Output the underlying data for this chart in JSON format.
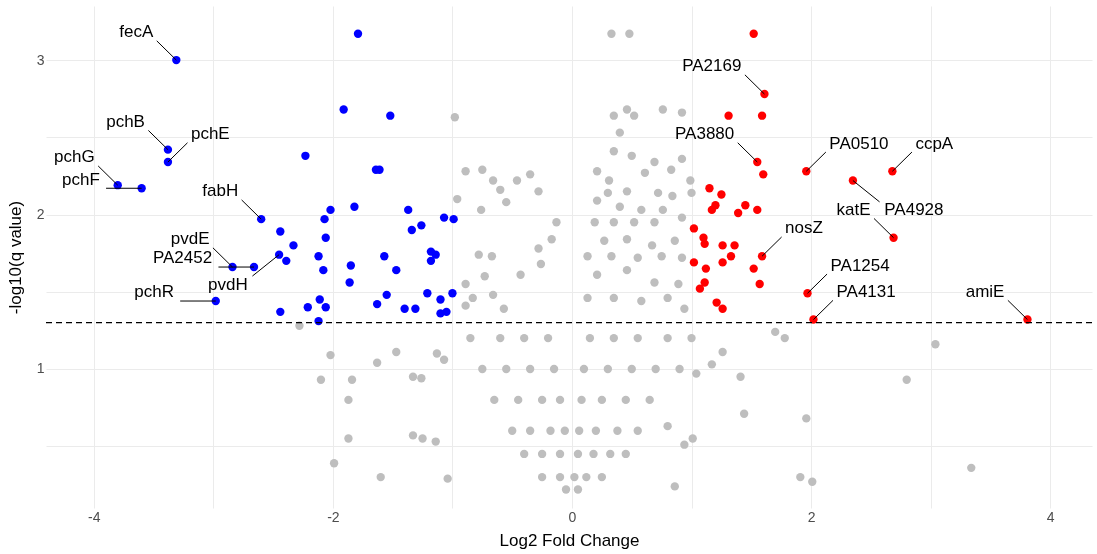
{
  "chart_data": {
    "type": "scatter",
    "xlabel": "Log2 Fold Change",
    "ylabel": "-log10(q value)",
    "xlim": [
      -4.4,
      4.35
    ],
    "ylim": [
      0.1,
      3.35
    ],
    "xticks": [
      -4,
      {
        "value": -3,
        "label": null
      },
      -2,
      {
        "value": -1,
        "label": null
      },
      0,
      {
        "value": 1,
        "label": null
      },
      2,
      {
        "value": 3,
        "label": null
      },
      4
    ],
    "yticks": [
      {
        "value": 0.5,
        "label": null
      },
      1,
      {
        "value": 1.5,
        "label": null
      },
      2,
      {
        "value": 2.5,
        "label": null
      },
      3
    ],
    "grid": true,
    "legend": false,
    "marker": "circle",
    "ref_lines": [
      {
        "axis": "y",
        "value": 1.3,
        "line_style": "dashed",
        "color": "#000000"
      }
    ],
    "series": [
      {
        "color": "#bebebe",
        "x": [
          0.33,
          0.48,
          -0.98,
          0.35,
          0.46,
          0.52,
          0.76,
          0.92,
          0.4,
          -0.89,
          -0.75,
          -0.66,
          -0.46,
          -0.35,
          -0.6,
          -0.55,
          -0.28,
          -0.96,
          -0.76,
          -0.13,
          -0.17,
          -0.28,
          -0.78,
          -0.67,
          -0.73,
          -0.89,
          -0.83,
          -0.89,
          -0.43,
          -0.26,
          -0.66,
          -0.57,
          0.35,
          0.5,
          0.69,
          0.92,
          0.21,
          0.83,
          0.61,
          0.99,
          0.31,
          0.3,
          0.46,
          0.72,
          0.84,
          1.0,
          0.21,
          0.4,
          0.58,
          0.76,
          0.19,
          0.35,
          0.52,
          0.69,
          0.92,
          0.27,
          0.46,
          0.67,
          0.86,
          0.13,
          0.33,
          0.55,
          0.75,
          0.92,
          0.21,
          0.46,
          0.69,
          0.89,
          0.13,
          0.35,
          0.58,
          0.8,
          0.94,
          -0.85,
          -0.6,
          -0.4,
          -0.2,
          0.15,
          0.35,
          0.55,
          0.8,
          1.0,
          -0.75,
          -0.55,
          -0.35,
          -0.15,
          0.1,
          0.3,
          0.5,
          0.7,
          0.9,
          -0.65,
          -0.45,
          -0.25,
          -0.1,
          0.08,
          0.25,
          0.45,
          0.65,
          -0.5,
          -0.35,
          -0.18,
          -0.06,
          0.06,
          0.2,
          0.38,
          0.55,
          -0.4,
          -0.25,
          -0.1,
          0.05,
          0.18,
          0.32,
          0.45,
          -0.25,
          -0.1,
          0.02,
          0.12,
          0.25,
          -0.05,
          0.05,
          -2.28,
          -2.02,
          -2.1,
          -1.84,
          -1.87,
          -1.63,
          -1.47,
          -1.33,
          -1.26,
          -1.13,
          -1.07,
          -1.87,
          -1.99,
          -1.6,
          -1.33,
          -1.25,
          -1.14,
          -1.04,
          1.7,
          1.78,
          1.41,
          1.44,
          1.96,
          1.91,
          2.01,
          2.8,
          3.04,
          3.34,
          1.26,
          1.17,
          1.04,
          0.86,
          1.01,
          0.94,
          0.8
        ],
        "values": [
          3.17,
          3.17,
          2.63,
          2.64,
          2.68,
          2.64,
          2.68,
          2.66,
          2.53,
          2.28,
          2.29,
          2.22,
          2.22,
          2.26,
          2.16,
          2.08,
          2.15,
          2.1,
          2.03,
          1.95,
          1.84,
          1.78,
          1.74,
          1.73,
          1.6,
          1.55,
          1.46,
          1.41,
          1.61,
          1.68,
          1.48,
          1.39,
          2.41,
          2.38,
          2.34,
          2.36,
          2.28,
          2.29,
          2.27,
          2.22,
          2.22,
          2.14,
          2.15,
          2.14,
          2.12,
          2.14,
          2.09,
          2.05,
          2.03,
          2.03,
          1.95,
          1.95,
          1.95,
          1.95,
          1.98,
          1.83,
          1.84,
          1.8,
          1.83,
          1.73,
          1.73,
          1.72,
          1.73,
          1.72,
          1.61,
          1.64,
          1.56,
          1.55,
          1.46,
          1.46,
          1.44,
          1.46,
          1.39,
          1.2,
          1.2,
          1.2,
          1.2,
          1.2,
          1.2,
          1.2,
          1.2,
          1.2,
          1.0,
          1.0,
          1.0,
          1.0,
          1.0,
          1.0,
          1.0,
          1.0,
          1.0,
          0.8,
          0.8,
          0.8,
          0.8,
          0.8,
          0.8,
          0.8,
          0.8,
          0.6,
          0.6,
          0.6,
          0.6,
          0.6,
          0.6,
          0.6,
          0.6,
          0.45,
          0.45,
          0.45,
          0.45,
          0.45,
          0.45,
          0.45,
          0.3,
          0.3,
          0.3,
          0.3,
          0.3,
          0.22,
          0.22,
          1.28,
          1.09,
          0.93,
          0.93,
          0.8,
          1.04,
          1.11,
          0.95,
          0.94,
          1.1,
          1.06,
          0.55,
          0.39,
          0.3,
          0.57,
          0.55,
          0.53,
          0.29,
          1.24,
          1.2,
          0.95,
          0.71,
          0.68,
          0.3,
          0.27,
          0.93,
          1.16,
          0.36,
          1.11,
          1.03,
          0.97,
          0.24,
          0.55,
          0.51,
          0.63
        ]
      },
      {
        "color": "#0000ff",
        "x": [
          -3.31,
          -3.38,
          -3.38,
          -3.8,
          -3.6,
          -2.6,
          -2.84,
          -2.66,
          -2.45,
          -2.98,
          -1.79,
          -1.91,
          -1.52,
          -2.23,
          -1.64,
          -1.61,
          -2.02,
          -1.82,
          -2.07,
          -2.44,
          -2.33,
          -2.06,
          -2.39,
          -2.12,
          -2.08,
          -1.85,
          -1.86,
          -2.44,
          -2.21,
          -2.11,
          -2.06,
          -2.12,
          -1.63,
          -1.55,
          -1.37,
          -1.34,
          -1.26,
          -1.07,
          -0.99,
          -1.57,
          -1.18,
          -1.14,
          -1.18,
          -1.47,
          -1.21,
          -1.1,
          -1.0,
          -1.4,
          -1.31,
          -1.1,
          -1.05
        ],
        "values": [
          3.0,
          2.42,
          2.34,
          2.19,
          2.17,
          1.97,
          1.66,
          1.66,
          1.74,
          1.44,
          3.17,
          2.68,
          2.64,
          2.38,
          2.29,
          2.29,
          2.03,
          2.05,
          1.97,
          1.89,
          1.8,
          1.85,
          1.7,
          1.73,
          1.64,
          1.67,
          1.56,
          1.37,
          1.4,
          1.45,
          1.4,
          1.31,
          1.42,
          1.48,
          2.03,
          1.9,
          1.93,
          1.98,
          1.97,
          1.73,
          1.76,
          1.74,
          1.7,
          1.64,
          1.49,
          1.45,
          1.49,
          1.39,
          1.39,
          1.36,
          1.37
        ]
      },
      {
        "color": "#ff0000",
        "x": [
          1.61,
          1.55,
          1.96,
          2.35,
          2.68,
          2.69,
          1.59,
          1.97,
          2.02,
          3.81,
          1.52,
          1.31,
          1.59,
          1.6,
          1.15,
          1.25,
          1.2,
          1.17,
          1.45,
          1.39,
          1.55,
          1.02,
          1.1,
          1.11,
          1.26,
          1.36,
          1.33,
          1.26,
          1.02,
          1.12,
          1.52,
          1.11,
          1.07,
          1.57,
          1.21,
          1.26
        ],
        "values": [
          2.78,
          2.34,
          2.28,
          2.22,
          2.28,
          1.85,
          1.73,
          1.49,
          1.32,
          1.32,
          3.17,
          2.64,
          2.64,
          2.26,
          2.17,
          2.13,
          2.06,
          2.03,
          2.06,
          2.01,
          2.03,
          1.91,
          1.85,
          1.81,
          1.8,
          1.8,
          1.73,
          1.69,
          1.69,
          1.65,
          1.65,
          1.56,
          1.52,
          1.55,
          1.43,
          1.39
        ]
      }
    ],
    "annotations": [
      {
        "text": "fecA",
        "x": -3.31,
        "y": 3.0
      },
      {
        "text": "pchB",
        "x": -3.38,
        "y": 2.42
      },
      {
        "text": "pchE",
        "x": -3.38,
        "y": 2.34
      },
      {
        "text": "pchG",
        "x": -3.8,
        "y": 2.19
      },
      {
        "text": "pchF",
        "x": -3.6,
        "y": 2.17
      },
      {
        "text": "fabH",
        "x": -2.6,
        "y": 1.97
      },
      {
        "text": "pvdE",
        "x": -2.84,
        "y": 1.66
      },
      {
        "text": "PA2452",
        "x": -2.66,
        "y": 1.66
      },
      {
        "text": "pvdH",
        "x": -2.45,
        "y": 1.74
      },
      {
        "text": "pchR",
        "x": -2.98,
        "y": 1.44
      },
      {
        "text": "PA2169",
        "x": 1.61,
        "y": 2.78
      },
      {
        "text": "PA3880",
        "x": 1.55,
        "y": 2.34
      },
      {
        "text": "PA0510",
        "x": 1.96,
        "y": 2.28
      },
      {
        "text": "PA4928",
        "x": 2.35,
        "y": 2.22
      },
      {
        "text": "ccpA",
        "x": 2.68,
        "y": 2.28
      },
      {
        "text": "katE",
        "x": 2.69,
        "y": 1.85
      },
      {
        "text": "nosZ",
        "x": 1.59,
        "y": 1.73
      },
      {
        "text": "PA1254",
        "x": 1.97,
        "y": 1.49
      },
      {
        "text": "PA4131",
        "x": 2.02,
        "y": 1.32
      },
      {
        "text": "amiE",
        "x": 3.81,
        "y": 1.32
      }
    ]
  }
}
